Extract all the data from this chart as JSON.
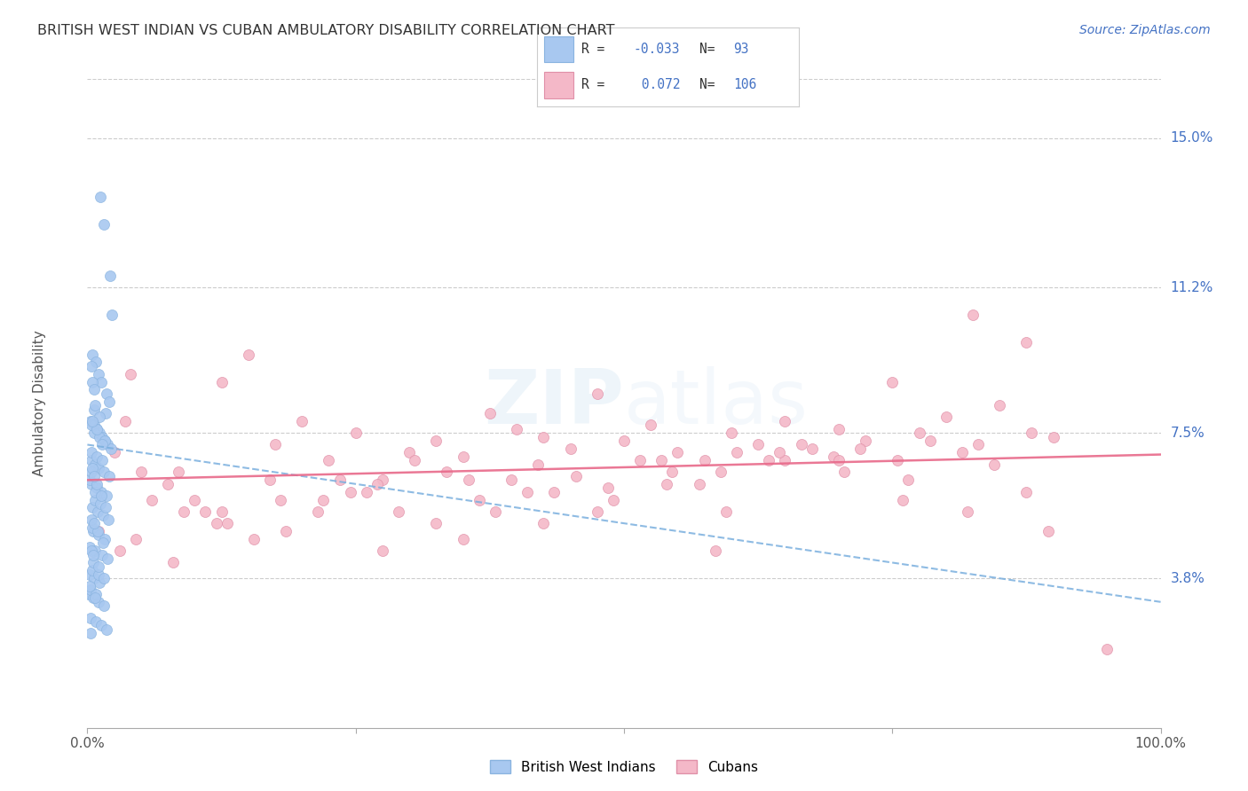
{
  "title": "BRITISH WEST INDIAN VS CUBAN AMBULATORY DISABILITY CORRELATION CHART",
  "source": "Source: ZipAtlas.com",
  "ylabel": "Ambulatory Disability",
  "ytick_labels": [
    "3.8%",
    "7.5%",
    "11.2%",
    "15.0%"
  ],
  "ytick_values": [
    3.8,
    7.5,
    11.2,
    15.0
  ],
  "xlim": [
    0.0,
    100.0
  ],
  "ylim": [
    0.0,
    16.5
  ],
  "legend_r_blue": "-0.033",
  "legend_n_blue": "93",
  "legend_r_pink": " 0.072",
  "legend_n_pink": "106",
  "legend_label_blue": "British West Indians",
  "legend_label_pink": "Cubans",
  "blue_color": "#a8c8f0",
  "pink_color": "#f4b8c8",
  "blue_line_color": "#7aafde",
  "pink_line_color": "#e8698a",
  "blue_line_x": [
    0,
    100
  ],
  "blue_line_y": [
    7.2,
    3.2
  ],
  "pink_line_x": [
    0,
    100
  ],
  "pink_line_y": [
    6.3,
    6.95
  ],
  "blue_scatter_x": [
    1.2,
    1.5,
    2.1,
    2.3,
    0.5,
    0.8,
    1.0,
    1.3,
    1.8,
    2.0,
    0.3,
    0.6,
    0.9,
    1.1,
    1.4,
    1.6,
    1.9,
    2.2,
    0.4,
    0.7,
    1.05,
    1.55,
    2.05,
    0.35,
    0.85,
    1.25,
    1.75,
    0.45,
    0.95,
    1.45,
    1.95,
    0.55,
    1.05,
    1.65,
    0.25,
    0.75,
    1.35,
    1.85,
    0.2,
    0.65,
    1.15,
    0.15,
    0.55,
    1.05,
    1.55,
    0.3,
    0.8,
    1.3,
    1.8,
    0.6,
    1.1,
    1.6,
    0.4,
    0.9,
    1.4,
    1.7,
    0.7,
    1.2,
    1.7,
    0.5,
    1.0,
    1.5,
    0.35,
    0.85,
    1.35,
    0.25,
    0.75,
    1.25,
    0.45,
    0.95,
    1.45,
    0.6,
    1.1,
    0.4,
    0.9,
    0.55,
    1.05,
    0.3,
    0.8,
    0.5,
    0.7,
    0.4,
    0.6,
    0.45,
    0.65,
    0.35,
    0.55,
    0.25,
    0.75,
    0.5,
    0.3,
    0.6,
    0.4
  ],
  "blue_scatter_y": [
    13.5,
    12.8,
    11.5,
    10.5,
    9.5,
    9.3,
    9.0,
    8.8,
    8.5,
    8.3,
    7.8,
    7.7,
    7.6,
    7.5,
    7.4,
    7.3,
    7.2,
    7.1,
    6.8,
    6.7,
    6.6,
    6.5,
    6.4,
    6.2,
    6.1,
    6.0,
    5.9,
    5.6,
    5.5,
    5.4,
    5.3,
    5.0,
    4.9,
    4.8,
    4.6,
    4.5,
    4.4,
    4.3,
    3.9,
    3.8,
    3.7,
    3.4,
    3.3,
    3.2,
    3.1,
    2.8,
    2.7,
    2.6,
    2.5,
    7.5,
    7.4,
    7.3,
    7.0,
    6.9,
    6.8,
    8.0,
    5.8,
    5.7,
    5.6,
    4.0,
    3.9,
    3.8,
    7.7,
    7.6,
    7.2,
    6.3,
    6.0,
    5.9,
    5.1,
    5.0,
    4.7,
    8.1,
    7.9,
    6.5,
    6.2,
    4.2,
    4.1,
    3.5,
    3.4,
    7.8,
    8.2,
    5.3,
    5.2,
    6.6,
    6.4,
    4.5,
    4.4,
    3.6,
    3.3,
    8.8,
    2.4,
    8.6,
    9.2
  ],
  "pink_scatter_x": [
    2.5,
    5.0,
    7.5,
    10.0,
    12.5,
    15.0,
    17.5,
    20.0,
    22.5,
    25.0,
    27.5,
    30.0,
    32.5,
    35.0,
    37.5,
    40.0,
    42.5,
    45.0,
    47.5,
    50.0,
    52.5,
    55.0,
    57.5,
    60.0,
    62.5,
    65.0,
    67.5,
    70.0,
    72.5,
    75.0,
    77.5,
    80.0,
    82.5,
    85.0,
    87.5,
    90.0,
    3.0,
    6.0,
    9.0,
    12.0,
    15.5,
    18.5,
    21.5,
    24.5,
    27.0,
    30.5,
    33.5,
    36.5,
    39.5,
    42.0,
    45.5,
    48.5,
    51.5,
    54.5,
    57.0,
    60.5,
    63.5,
    66.5,
    69.5,
    72.0,
    75.5,
    78.5,
    81.5,
    84.5,
    88.0,
    4.0,
    8.0,
    12.5,
    17.0,
    22.0,
    27.5,
    32.5,
    38.0,
    43.5,
    49.0,
    54.0,
    59.5,
    65.0,
    70.5,
    76.0,
    82.0,
    87.5,
    1.0,
    4.5,
    8.5,
    13.0,
    18.0,
    23.5,
    29.0,
    35.0,
    41.0,
    47.5,
    53.5,
    59.0,
    64.5,
    70.0,
    76.5,
    83.0,
    89.5,
    95.0,
    3.5,
    11.0,
    26.0,
    42.5,
    58.5,
    35.5
  ],
  "pink_scatter_y": [
    7.0,
    6.5,
    6.2,
    5.8,
    5.5,
    9.5,
    7.2,
    7.8,
    6.8,
    7.5,
    6.3,
    7.0,
    7.3,
    6.9,
    8.0,
    7.6,
    7.4,
    7.1,
    8.5,
    7.3,
    7.7,
    7.0,
    6.8,
    7.5,
    7.2,
    7.8,
    7.1,
    7.6,
    7.3,
    8.8,
    7.5,
    7.9,
    10.5,
    8.2,
    9.8,
    7.4,
    4.5,
    5.8,
    5.5,
    5.2,
    4.8,
    5.0,
    5.5,
    6.0,
    6.2,
    6.8,
    6.5,
    5.8,
    6.3,
    6.7,
    6.4,
    6.1,
    6.8,
    6.5,
    6.2,
    7.0,
    6.8,
    7.2,
    6.9,
    7.1,
    6.8,
    7.3,
    7.0,
    6.7,
    7.5,
    9.0,
    4.2,
    8.8,
    6.3,
    5.8,
    4.5,
    5.2,
    5.5,
    6.0,
    5.8,
    6.2,
    5.5,
    6.8,
    6.5,
    5.8,
    5.5,
    6.0,
    5.0,
    4.8,
    6.5,
    5.2,
    5.8,
    6.3,
    5.5,
    4.8,
    6.0,
    5.5,
    6.8,
    6.5,
    7.0,
    6.8,
    6.3,
    7.2,
    5.0,
    2.0,
    7.8,
    5.5,
    6.0,
    5.2,
    4.5,
    6.3
  ]
}
